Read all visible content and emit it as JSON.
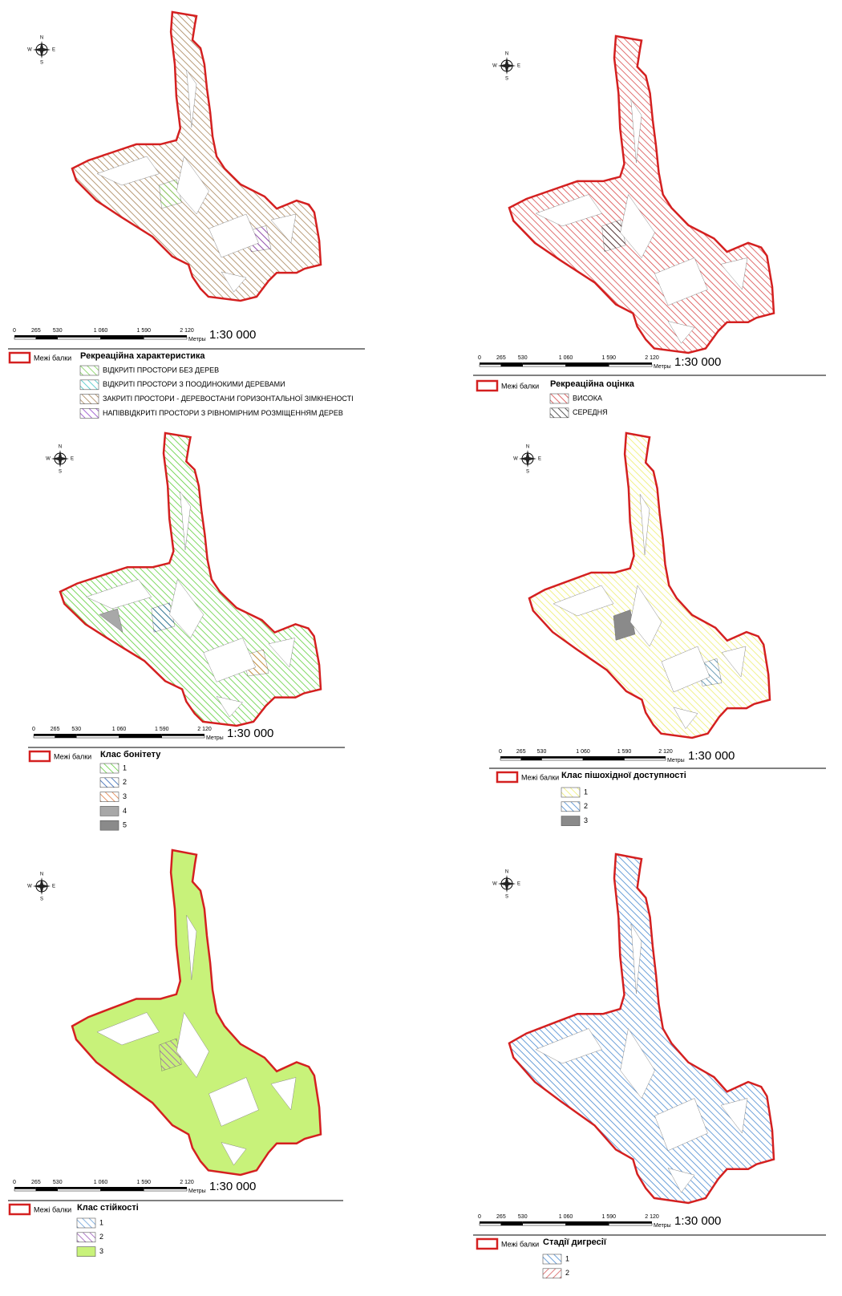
{
  "common": {
    "boundary_label": "Межі балки",
    "compass": {
      "N": "N",
      "S": "S",
      "W": "W",
      "E": "E"
    },
    "scale": {
      "ticks": [
        "0",
        "265",
        "530",
        "1 060",
        "1 590",
        "2 120"
      ],
      "unit": "Метры",
      "ratio": "1:30 000"
    }
  },
  "panels": [
    {
      "legend_title": "Рекреаційна характеристика",
      "items": [
        {
          "label": "ВІДКРИТІ ПРОСТОРИ БЕЗ ДЕРЕВ",
          "color": "#7fd35a",
          "pattern": "hatch"
        },
        {
          "label": "ВІДКРИТІ ПРОСТОРИ З ПООДИНОКИМИ ДЕРЕВАМИ",
          "color": "#49c9c7",
          "pattern": "hatch"
        },
        {
          "label": "ЗАКРИТІ ПРОСТОРИ - ДЕРЕВОСТАНИ ГОРИЗОНТАЛЬНОЇ ЗІМКНЕНОСТІ",
          "color": "#a8855a",
          "pattern": "hatch"
        },
        {
          "label": "НАПІВВІДКРИТІ ПРОСТОРИ З РІВНОМІРНИМ РОЗМІЩЕННЯМ ДЕРЕВ",
          "color": "#8e44c8",
          "pattern": "hatch"
        }
      ]
    },
    {
      "legend_title": "Рекреаційна оцінка",
      "items": [
        {
          "label": "ВИСОКА",
          "color": "#d94a4a",
          "pattern": "hatch"
        },
        {
          "label": "СЕРЕДНЯ",
          "color": "#333333",
          "pattern": "hatch"
        }
      ]
    },
    {
      "legend_title": "Клас бонітету",
      "items": [
        {
          "label": "1",
          "color": "#5fcf3a",
          "pattern": "hatch"
        },
        {
          "label": "2",
          "color": "#2a5fb0",
          "pattern": "hatch"
        },
        {
          "label": "3",
          "color": "#e07a40",
          "pattern": "hatch"
        },
        {
          "label": "4",
          "color": "#a8a8a8",
          "pattern": "solid"
        },
        {
          "label": "5",
          "color": "#8a8a8a",
          "pattern": "solid"
        }
      ]
    },
    {
      "legend_title": "Клас пішохідної доступності",
      "items": [
        {
          "label": "1",
          "color": "#eeee70",
          "pattern": "hatch"
        },
        {
          "label": "2",
          "color": "#4a8ad0",
          "pattern": "hatch"
        },
        {
          "label": "3",
          "color": "#8a8a8a",
          "pattern": "solid"
        }
      ]
    },
    {
      "legend_title": "Клас стійкості",
      "items": [
        {
          "label": "1",
          "color": "#6aa0d8",
          "pattern": "hatch"
        },
        {
          "label": "2",
          "color": "#9a5ab8",
          "pattern": "hatch"
        },
        {
          "label": "3",
          "color": "#c8f27a",
          "pattern": "solid"
        }
      ]
    },
    {
      "legend_title": "Стадії дигресії",
      "items": [
        {
          "label": "1",
          "color": "#4a8ad0",
          "pattern": "hatch"
        },
        {
          "label": "2",
          "color": "#d96060",
          "pattern": "reverse-hatch"
        }
      ]
    }
  ]
}
